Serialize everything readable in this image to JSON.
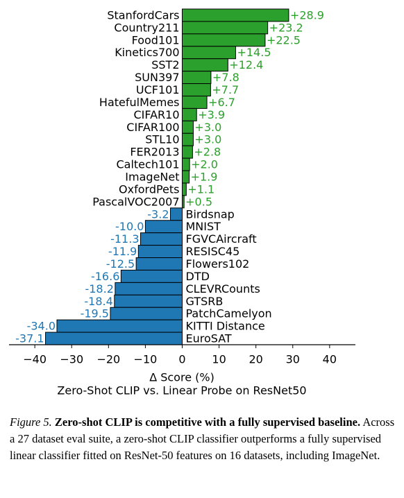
{
  "chart_data": {
    "type": "barh",
    "categories": [
      "StanfordCars",
      "Country211",
      "Food101",
      "Kinetics700",
      "SST2",
      "SUN397",
      "UCF101",
      "HatefulMemes",
      "CIFAR10",
      "CIFAR100",
      "STL10",
      "FER2013",
      "Caltech101",
      "ImageNet",
      "OxfordPets",
      "PascalVOC2007",
      "Birdsnap",
      "MNIST",
      "FGVCAircraft",
      "RESISC45",
      "Flowers102",
      "DTD",
      "CLEVRCounts",
      "GTSRB",
      "PatchCamelyon",
      "KITTI Distance",
      "EuroSAT"
    ],
    "values": [
      28.9,
      23.2,
      22.5,
      14.5,
      12.4,
      7.8,
      7.7,
      6.7,
      3.9,
      3.0,
      3.0,
      2.8,
      2.0,
      1.9,
      1.1,
      0.5,
      -3.2,
      -10.0,
      -11.3,
      -11.9,
      -12.5,
      -16.6,
      -18.2,
      -18.4,
      -19.5,
      -34.0,
      -37.1
    ],
    "value_labels": [
      "+28.9",
      "+23.2",
      "+22.5",
      "+14.5",
      "+12.4",
      "+7.8",
      "+7.7",
      "+6.7",
      "+3.9",
      "+3.0",
      "+3.0",
      "+2.8",
      "+2.0",
      "+1.9",
      "+1.1",
      "+0.5",
      "-3.2",
      "-10.0",
      "-11.3",
      "-11.9",
      "-12.5",
      "-16.6",
      "-18.2",
      "-18.4",
      "-19.5",
      "-34.0",
      "-37.1"
    ],
    "positive_color": "#2ca02c",
    "negative_color": "#1f77b4",
    "xlim": [
      -47,
      47
    ],
    "xticks": [
      {
        "value": -40,
        "label": "−40"
      },
      {
        "value": -30,
        "label": "−30"
      },
      {
        "value": -20,
        "label": "−20"
      },
      {
        "value": -10,
        "label": "−10"
      },
      0,
      10,
      20,
      30,
      40
    ],
    "xlabel": "Δ Score (%)",
    "title": "Zero-Shot CLIP vs. Linear Probe on ResNet50"
  },
  "caption": {
    "label": "Figure 5.",
    "title": "Zero-shot CLIP is competitive with a fully supervised baseline.",
    "text": "Across a 27 dataset eval suite, a zero-shot CLIP classifier outperforms a fully supervised linear classifier fitted on ResNet-50 features on 16 datasets, including ImageNet."
  }
}
